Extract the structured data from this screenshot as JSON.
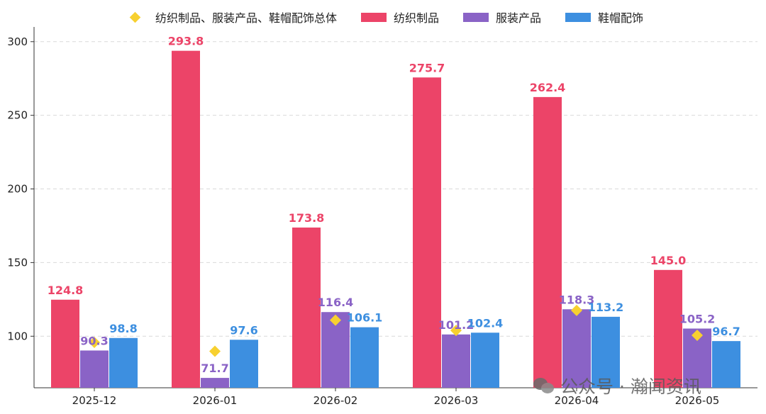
{
  "chart_data": {
    "type": "bar",
    "categories": [
      "2025-12",
      "2026-01",
      "2026-02",
      "2026-03",
      "2026-04",
      "2026-05"
    ],
    "series": [
      {
        "name": "纺织制品",
        "values": [
          124.8,
          293.8,
          173.8,
          275.7,
          262.4,
          145.0
        ],
        "labels": [
          "124.8",
          "293.8",
          "173.8",
          "275.7",
          "262.4",
          "145.0"
        ],
        "color": "#ec4468"
      },
      {
        "name": "服装产品",
        "values": [
          90.3,
          71.7,
          116.4,
          101.2,
          118.3,
          105.2
        ],
        "labels": [
          "90.3",
          "71.7",
          "116.4",
          "101.2",
          "118.3",
          "105.2"
        ],
        "color": "#8a63c6"
      },
      {
        "name": "鞋帽配饰",
        "values": [
          98.8,
          97.6,
          106.1,
          102.4,
          113.2,
          96.7
        ],
        "labels": [
          "98.8",
          "97.6",
          "106.1",
          "102.4",
          "113.2",
          "96.7"
        ],
        "color": "#3d8fe0"
      }
    ],
    "overall": {
      "name": "纺织制品、服装产品、鞋帽配饰总体",
      "type": "scatter",
      "marker": "diamond",
      "color": "#f7d030",
      "values": [
        95.8,
        89.8,
        110.9,
        103.9,
        117.5,
        100.6
      ]
    },
    "ylim": [
      65,
      310
    ],
    "yticks": [
      100,
      150,
      200,
      250,
      300
    ],
    "grid": true,
    "legend": "top-center",
    "title": "",
    "xlabel": "",
    "ylabel": ""
  },
  "legend": {
    "overall": "纺织制品、服装产品、鞋帽配饰总体",
    "textile": "纺织制品",
    "apparel": "服装产品",
    "footwear": "鞋帽配饰"
  },
  "watermark": {
    "text": "公众号 · 瀚闻资讯",
    "icon": "wechat-icon"
  }
}
